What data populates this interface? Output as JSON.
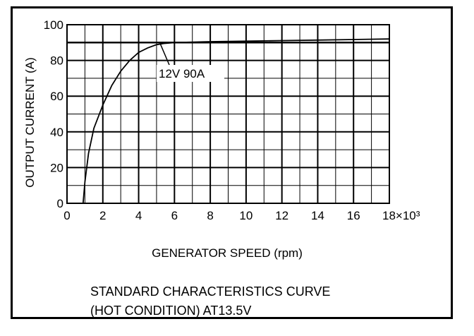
{
  "chart_data": {
    "type": "line",
    "ylabel": "OUTPUT CURRENT (A)",
    "xlabel": "GENERATOR SPEED (rpm)",
    "caption": [
      "STANDARD CHARACTERISTICS CURVE",
      "(HOT CONDITION) AT13.5V"
    ],
    "xlim": [
      0,
      18
    ],
    "ylim": [
      0,
      100
    ],
    "x_tick_labels": [
      "0",
      "2",
      "4",
      "6",
      "8",
      "10",
      "12",
      "14",
      "16",
      "18×10³"
    ],
    "y_tick_labels": [
      "0",
      "20",
      "40",
      "60",
      "80",
      "100"
    ],
    "grid": true,
    "rated_line_y": 90,
    "series": [
      {
        "x": [
          0.9,
          1.0,
          1.2,
          1.5,
          2.0,
          2.5,
          3.0,
          3.5,
          4.0,
          4.5,
          5.0,
          5.4,
          6.0,
          8.0,
          10.0,
          12.0,
          14.0,
          16.0,
          18.0
        ],
        "y": [
          0,
          12,
          28,
          42,
          55,
          66,
          74,
          80,
          84.5,
          87,
          88.8,
          89.5,
          90,
          90.5,
          90.8,
          91.1,
          91.4,
          91.7,
          92
        ]
      }
    ],
    "annotations": [
      {
        "text": "12V 90A",
        "x": 5.2,
        "y": 89.5
      }
    ]
  }
}
